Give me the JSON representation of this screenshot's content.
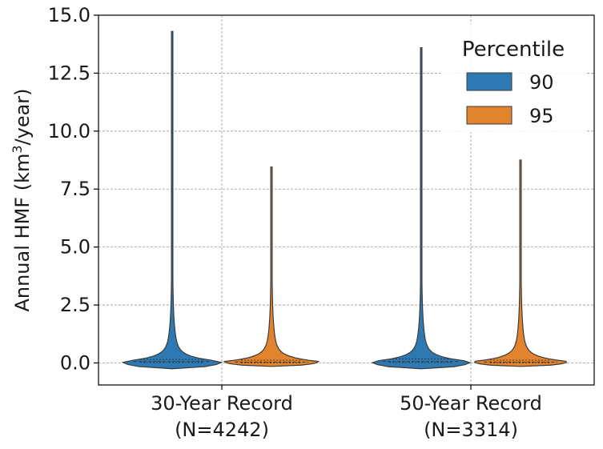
{
  "chart_data": {
    "type": "violin",
    "ylabel_prefix": "Annual HMF (km",
    "ylabel_sup": "3",
    "ylabel_suffix": "/year)",
    "ylim": [
      -0.95,
      15.0
    ],
    "yticks": [
      0.0,
      2.5,
      5.0,
      7.5,
      10.0,
      12.5,
      15.0
    ],
    "ytick_labels": [
      "0.0",
      "2.5",
      "5.0",
      "7.5",
      "10.0",
      "12.5",
      "15.0"
    ],
    "grid": true,
    "categories": [
      {
        "line1": "30-Year Record",
        "line2": "(N=4242)"
      },
      {
        "line1": "50-Year Record",
        "line2": "(N=3314)"
      }
    ],
    "legend": {
      "title": "Percentile",
      "placement": "top-right",
      "entries": [
        "90",
        "95"
      ]
    },
    "series": [
      {
        "name": "90",
        "color": "#2f79b3",
        "violins": [
          {
            "min": -0.25,
            "max": 14.3,
            "q1": 0.02,
            "median": 0.06,
            "q3": 0.15
          },
          {
            "min": -0.25,
            "max": 13.6,
            "q1": 0.02,
            "median": 0.06,
            "q3": 0.17
          }
        ]
      },
      {
        "name": "95",
        "color": "#e2832e",
        "violins": [
          {
            "min": -0.15,
            "max": 8.45,
            "q1": 0.01,
            "median": 0.04,
            "q3": 0.12
          },
          {
            "min": -0.15,
            "max": 8.75,
            "q1": 0.01,
            "median": 0.04,
            "q3": 0.12
          }
        ]
      }
    ]
  }
}
